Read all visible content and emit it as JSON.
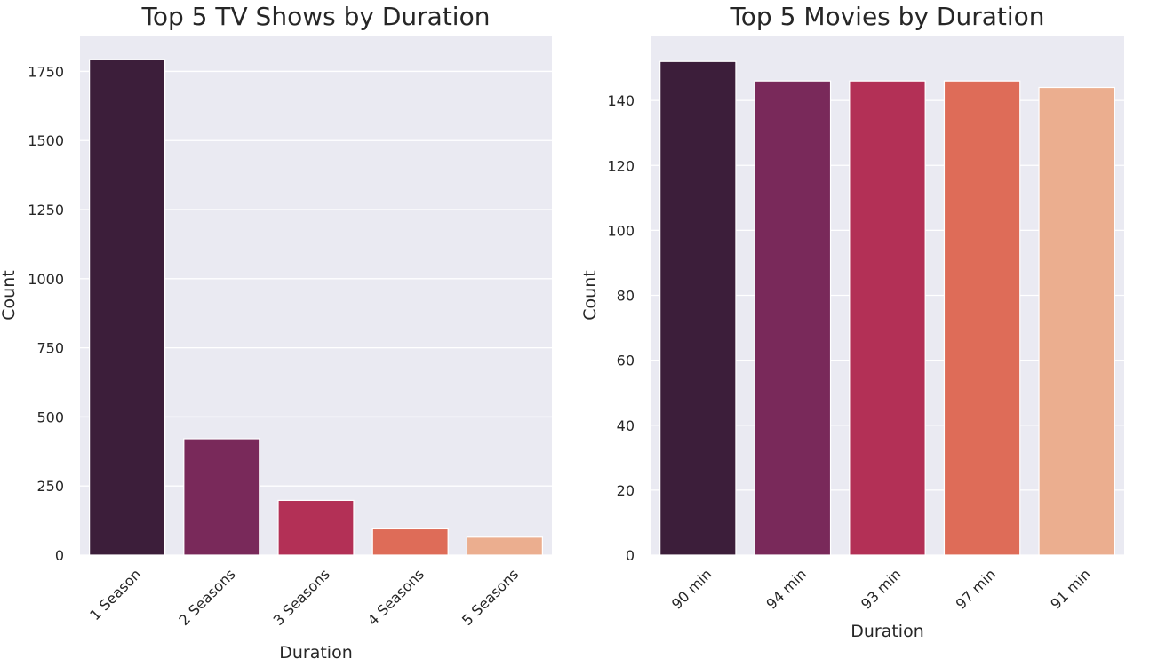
{
  "chart_data": [
    {
      "type": "bar",
      "title": "Top 5 TV Shows by Duration",
      "xlabel": "Duration",
      "ylabel": "Count",
      "categories": [
        "1 Season",
        "2 Seasons",
        "3 Seasons",
        "4 Seasons",
        "5 Seasons"
      ],
      "values": [
        1793,
        421,
        198,
        95,
        65
      ],
      "ylim": [
        0,
        1880
      ],
      "yticks": [
        0,
        250,
        500,
        750,
        1000,
        1250,
        1500,
        1750
      ],
      "grid": true,
      "colors": [
        "#3c1e3a",
        "#79295a",
        "#b33056",
        "#de6c58",
        "#ebae8f"
      ]
    },
    {
      "type": "bar",
      "title": "Top 5 Movies by Duration",
      "xlabel": "Duration",
      "ylabel": "Count",
      "categories": [
        "90 min",
        "94 min",
        "93 min",
        "97 min",
        "91 min"
      ],
      "values": [
        152,
        146,
        146,
        146,
        144
      ],
      "ylim": [
        0,
        160
      ],
      "yticks": [
        0,
        20,
        40,
        60,
        80,
        100,
        120,
        140
      ],
      "grid": true,
      "colors": [
        "#3c1e3a",
        "#79295a",
        "#b33056",
        "#de6c58",
        "#ebae8f"
      ]
    }
  ],
  "theme": {
    "plot_background": "#eaeaf2",
    "grid_color": "#ffffff",
    "text_color": "#262626"
  }
}
